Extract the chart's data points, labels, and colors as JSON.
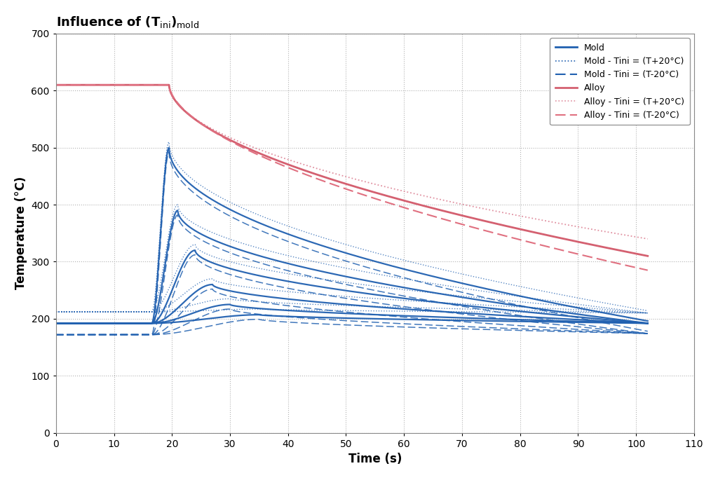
{
  "title_main": "Influence of (T",
  "title_sub_ini": "ini",
  "title_sub_mold": "mold",
  "xlabel": "Time (s)",
  "ylabel": "Temperature (°C)",
  "xlim": [
    0,
    110
  ],
  "ylim": [
    0,
    700
  ],
  "xticks": [
    0,
    10,
    20,
    30,
    40,
    50,
    60,
    70,
    80,
    90,
    100,
    110
  ],
  "yticks": [
    0,
    100,
    200,
    300,
    400,
    500,
    600,
    700
  ],
  "mold_color": "#2060b0",
  "alloy_color": "#d46070",
  "alloy_plus_color": "#e090a0",
  "alloy_minus_color": "#e07080",
  "legend_labels": [
    "Mold",
    "Mold - Tini = (T+20°C)",
    "Mold - Tini = (T-20°C)",
    "Alloy",
    "Alloy - Tini = (T+20°C)",
    "Alloy - Tini = (T-20°C)"
  ]
}
